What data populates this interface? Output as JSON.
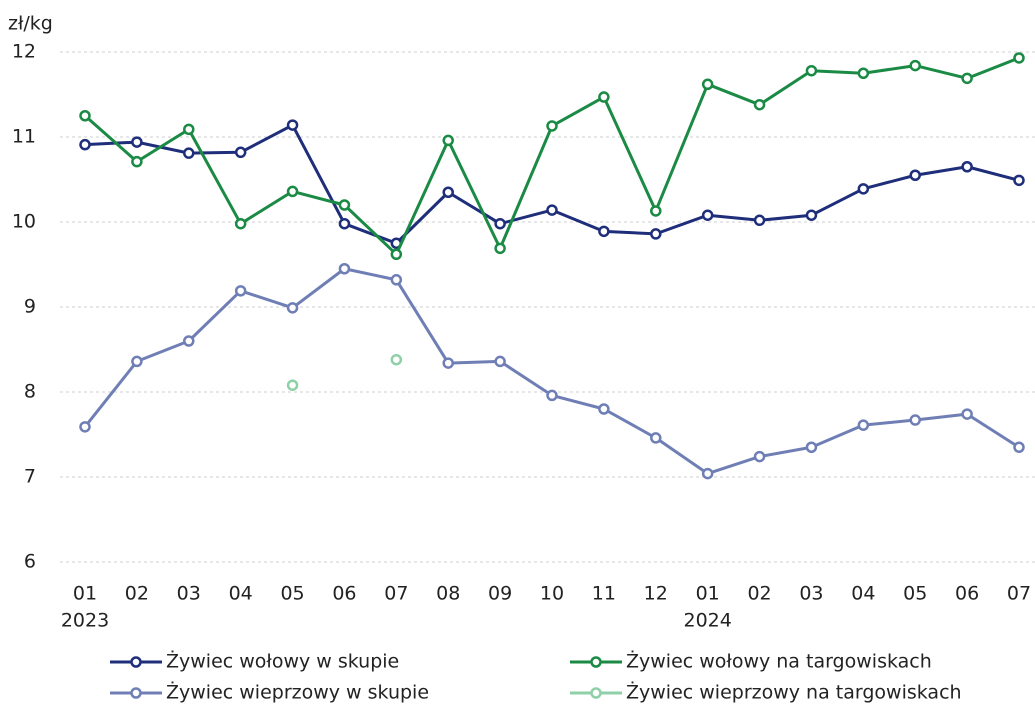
{
  "chart_data": {
    "type": "line",
    "y_unit_label": "zł/kg",
    "categories": [
      {
        "month": "01",
        "year": "2023"
      },
      {
        "month": "02"
      },
      {
        "month": "03"
      },
      {
        "month": "04"
      },
      {
        "month": "05"
      },
      {
        "month": "06"
      },
      {
        "month": "07"
      },
      {
        "month": "08"
      },
      {
        "month": "09"
      },
      {
        "month": "10"
      },
      {
        "month": "11"
      },
      {
        "month": "12"
      },
      {
        "month": "01",
        "year": "2024"
      },
      {
        "month": "02"
      },
      {
        "month": "03"
      },
      {
        "month": "04"
      },
      {
        "month": "05"
      },
      {
        "month": "06"
      },
      {
        "month": "07"
      }
    ],
    "series": [
      {
        "name": "Żywiec wołowy w skupie",
        "color": "#1f2e7a",
        "line": true,
        "values": [
          10.91,
          10.94,
          10.81,
          10.82,
          11.14,
          9.98,
          9.75,
          10.35,
          9.98,
          10.14,
          9.89,
          9.86,
          10.08,
          10.02,
          10.08,
          10.39,
          10.55,
          10.65,
          10.49
        ]
      },
      {
        "name": "Żywiec wołowy na targowiskach",
        "color": "#1a8a44",
        "line": true,
        "values": [
          11.25,
          10.71,
          11.09,
          9.98,
          10.36,
          10.2,
          9.62,
          10.96,
          9.69,
          11.13,
          11.47,
          10.13,
          11.62,
          11.38,
          11.78,
          11.75,
          11.84,
          11.69,
          11.93
        ]
      },
      {
        "name": "Żywiec wieprzowy w skupie",
        "color": "#6f7fb5",
        "line": true,
        "values": [
          7.59,
          8.36,
          8.6,
          9.19,
          8.99,
          9.45,
          9.32,
          8.34,
          8.36,
          7.96,
          7.8,
          7.46,
          7.04,
          7.24,
          7.35,
          7.61,
          7.67,
          7.74,
          7.35
        ]
      },
      {
        "name": "Żywiec wieprzowy na targowiskach",
        "color": "#8fd0a8",
        "line": false,
        "values": [
          null,
          null,
          null,
          null,
          8.08,
          null,
          8.38,
          null,
          null,
          null,
          null,
          null,
          null,
          null,
          null,
          null,
          null,
          null,
          null
        ]
      }
    ],
    "ylim": [
      6,
      12
    ],
    "yticks": [
      6,
      7,
      8,
      9,
      10,
      11,
      12
    ],
    "grid": true
  }
}
